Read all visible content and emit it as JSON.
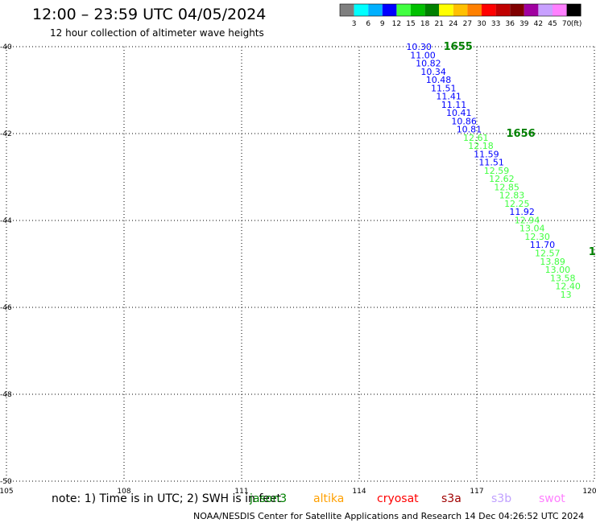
{
  "header": {
    "title": "12:00 – 23:59 UTC 04/05/2024",
    "subtitle": "12 hour collection of altimeter wave heights"
  },
  "colorbar": {
    "unit_label": "(ft)",
    "ticks": [
      "3",
      "6",
      "9",
      "12",
      "15",
      "18",
      "21",
      "24",
      "27",
      "30",
      "33",
      "36",
      "39",
      "42",
      "45",
      "70"
    ],
    "colors": [
      "#7f7f7f",
      "#00ffff",
      "#00b0ff",
      "#0000ff",
      "#40ff40",
      "#00c000",
      "#008000",
      "#ffff00",
      "#ffc000",
      "#ff8000",
      "#ff0000",
      "#c00000",
      "#800000",
      "#a000a0",
      "#c8a0ff",
      "#ff80ff",
      "#000000"
    ]
  },
  "note": "note: 1) Time is in UTC; 2) SWH is in feet",
  "satellites": [
    {
      "name": "jason3",
      "color": "#008000"
    },
    {
      "name": "altika",
      "color": "#ffa000"
    },
    {
      "name": "cryosat",
      "color": "#ff0000"
    },
    {
      "name": "s3a",
      "color": "#a00000"
    },
    {
      "name": "s3b",
      "color": "#c0a0ff"
    },
    {
      "name": "swot",
      "color": "#ff80ff"
    }
  ],
  "footer": "NOAA/NESDIS Center for Satellite Applications and Research   14 Dec 04:26:52 UTC 2024",
  "chart_data": {
    "type": "scatter",
    "title": "12:00 – 23:59 UTC 04/05/2024",
    "subtitle": "12 hour collection of altimeter wave heights",
    "xlim": [
      105,
      120
    ],
    "ylim": [
      -50,
      -40
    ],
    "xticks": [
      105,
      108,
      111,
      114,
      117,
      120
    ],
    "yticks": [
      -40,
      -42,
      -44,
      -46,
      -48,
      -50
    ],
    "x_tick_labels": [
      "105",
      "108",
      "111",
      "114",
      "117",
      "120"
    ],
    "y_tick_labels": [
      "-40",
      "-42",
      "-44",
      "-46",
      "-48",
      "-50"
    ],
    "grid": true,
    "time_labels": [
      {
        "text": "1655",
        "x": 116.15,
        "y": -40.0,
        "color": "#008000"
      },
      {
        "text": "1656",
        "x": 117.75,
        "y": -42.0,
        "color": "#008000"
      },
      {
        "text": "1",
        "x": 119.85,
        "y": -44.72,
        "color": "#008000"
      }
    ],
    "series": [
      {
        "name": "jason3",
        "points": [
          {
            "x": 115.2,
            "y": -40.0,
            "swh": "10.30",
            "color": "#0000ff"
          },
          {
            "x": 115.3,
            "y": -40.19,
            "swh": "11.00",
            "color": "#0000ff"
          },
          {
            "x": 115.44,
            "y": -40.38,
            "swh": "10.82",
            "color": "#0000ff"
          },
          {
            "x": 115.57,
            "y": -40.57,
            "swh": "10.34",
            "color": "#0000ff"
          },
          {
            "x": 115.7,
            "y": -40.76,
            "swh": "10.48",
            "color": "#0000ff"
          },
          {
            "x": 115.83,
            "y": -40.95,
            "swh": "11.51",
            "color": "#0000ff"
          },
          {
            "x": 115.96,
            "y": -41.14,
            "swh": "11.41",
            "color": "#0000ff"
          },
          {
            "x": 116.09,
            "y": -41.33,
            "swh": "11.11",
            "color": "#0000ff"
          },
          {
            "x": 116.22,
            "y": -41.52,
            "swh": "10.41",
            "color": "#0000ff"
          },
          {
            "x": 116.35,
            "y": -41.71,
            "swh": "10.86",
            "color": "#0000ff"
          },
          {
            "x": 116.48,
            "y": -41.9,
            "swh": "10.81",
            "color": "#0000ff"
          },
          {
            "x": 116.65,
            "y": -42.09,
            "swh": "12.61",
            "color": "#40ff40"
          },
          {
            "x": 116.78,
            "y": -42.28,
            "swh": "12.18",
            "color": "#40ff40"
          },
          {
            "x": 116.92,
            "y": -42.47,
            "swh": "11.59",
            "color": "#0000ff"
          },
          {
            "x": 117.05,
            "y": -42.66,
            "swh": "11.51",
            "color": "#0000ff"
          },
          {
            "x": 117.18,
            "y": -42.85,
            "swh": "12.59",
            "color": "#40ff40"
          },
          {
            "x": 117.31,
            "y": -43.04,
            "swh": "12.62",
            "color": "#40ff40"
          },
          {
            "x": 117.44,
            "y": -43.23,
            "swh": "12.85",
            "color": "#40ff40"
          },
          {
            "x": 117.57,
            "y": -43.42,
            "swh": "12.83",
            "color": "#40ff40"
          },
          {
            "x": 117.7,
            "y": -43.61,
            "swh": "12.25",
            "color": "#40ff40"
          },
          {
            "x": 117.83,
            "y": -43.8,
            "swh": "11.92",
            "color": "#0000ff"
          },
          {
            "x": 117.96,
            "y": -43.99,
            "swh": "12.94",
            "color": "#40ff40"
          },
          {
            "x": 118.09,
            "y": -44.18,
            "swh": "13.04",
            "color": "#40ff40"
          },
          {
            "x": 118.22,
            "y": -44.37,
            "swh": "12.30",
            "color": "#40ff40"
          },
          {
            "x": 118.35,
            "y": -44.56,
            "swh": "11.70",
            "color": "#0000ff"
          },
          {
            "x": 118.48,
            "y": -44.75,
            "swh": "12.57",
            "color": "#40ff40"
          },
          {
            "x": 118.61,
            "y": -44.94,
            "swh": "13.89",
            "color": "#40ff40"
          },
          {
            "x": 118.74,
            "y": -45.13,
            "swh": "13.00",
            "color": "#40ff40"
          },
          {
            "x": 118.87,
            "y": -45.32,
            "swh": "13.58",
            "color": "#40ff40"
          },
          {
            "x": 119.0,
            "y": -45.51,
            "swh": "12.40",
            "color": "#40ff40"
          },
          {
            "x": 119.13,
            "y": -45.7,
            "swh": "13",
            "color": "#40ff40"
          }
        ]
      }
    ]
  }
}
